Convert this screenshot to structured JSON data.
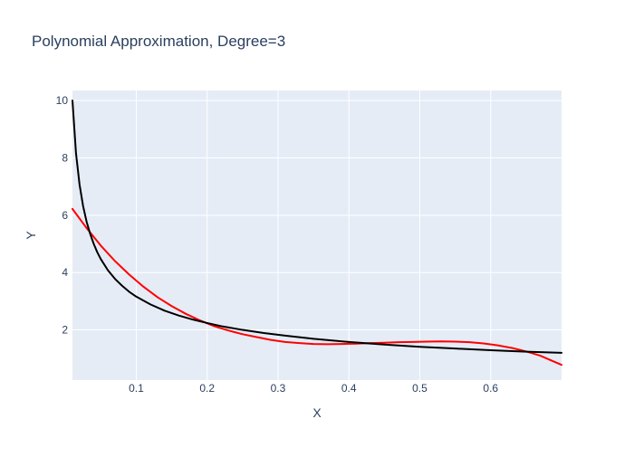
{
  "chart_data": {
    "type": "line",
    "title": "Polynomial Approximation, Degree=3",
    "xlabel": "X",
    "ylabel": "Y",
    "xlim": [
      0.01,
      0.7
    ],
    "ylim": [
      0.25,
      10.35
    ],
    "x_ticks": [
      0.1,
      0.2,
      0.3,
      0.4,
      0.5,
      0.6
    ],
    "x_tick_labels": [
      "0.1",
      "0.2",
      "0.3",
      "0.4",
      "0.5",
      "0.6"
    ],
    "y_ticks": [
      2,
      4,
      6,
      8,
      10
    ],
    "y_tick_labels": [
      "2",
      "4",
      "6",
      "8",
      "10"
    ],
    "grid": true,
    "legend": "none",
    "colors": {
      "plot_bg": "#e5ecf6",
      "grid": "#ffffff",
      "text": "#2a3f5f",
      "title": "#2a3f5f"
    },
    "series": [
      {
        "color": "#ff0000",
        "x": [
          0.01,
          0.03,
          0.05,
          0.07,
          0.09,
          0.11,
          0.13,
          0.15,
          0.17,
          0.19,
          0.21,
          0.23,
          0.25,
          0.27,
          0.29,
          0.31,
          0.33,
          0.35,
          0.37,
          0.39,
          0.41,
          0.43,
          0.45,
          0.47,
          0.49,
          0.51,
          0.53,
          0.55,
          0.57,
          0.59,
          0.61,
          0.63,
          0.65,
          0.67,
          0.7
        ],
        "y": [
          6.22,
          5.55,
          4.94,
          4.4,
          3.93,
          3.51,
          3.14,
          2.83,
          2.56,
          2.33,
          2.13,
          1.98,
          1.85,
          1.75,
          1.65,
          1.58,
          1.54,
          1.51,
          1.5,
          1.51,
          1.52,
          1.54,
          1.55,
          1.57,
          1.58,
          1.59,
          1.6,
          1.59,
          1.57,
          1.53,
          1.46,
          1.37,
          1.25,
          1.1,
          0.78
        ]
      },
      {
        "color": "#000000",
        "x": [
          0.01,
          0.015,
          0.02,
          0.025,
          0.03,
          0.035,
          0.04,
          0.045,
          0.05,
          0.06,
          0.07,
          0.08,
          0.09,
          0.1,
          0.12,
          0.14,
          0.16,
          0.18,
          0.2,
          0.22,
          0.25,
          0.28,
          0.31,
          0.35,
          0.4,
          0.45,
          0.5,
          0.55,
          0.6,
          0.65,
          0.7
        ],
        "y": [
          10.0,
          8.16,
          7.07,
          6.32,
          5.77,
          5.35,
          5.0,
          4.71,
          4.47,
          4.08,
          3.78,
          3.54,
          3.33,
          3.16,
          2.89,
          2.67,
          2.5,
          2.36,
          2.24,
          2.13,
          2.0,
          1.89,
          1.8,
          1.69,
          1.58,
          1.49,
          1.41,
          1.35,
          1.29,
          1.24,
          1.2
        ]
      }
    ]
  }
}
